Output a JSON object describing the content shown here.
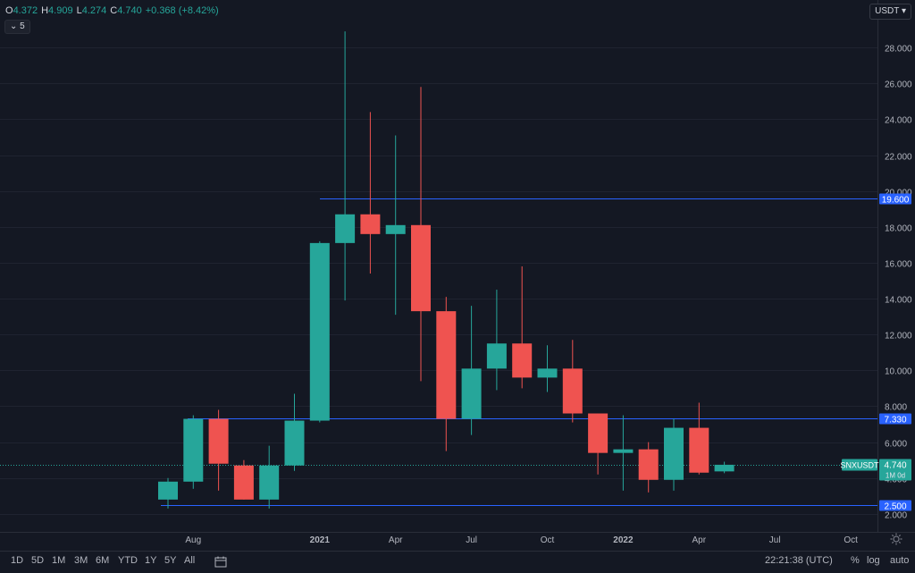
{
  "header": {
    "ohlc": [
      {
        "key": "O",
        "value": "4.372"
      },
      {
        "key": "H",
        "value": "4.909"
      },
      {
        "key": "L",
        "value": "4.274"
      },
      {
        "key": "C",
        "value": "4.740"
      }
    ],
    "change": "+0.368 (+8.42%)",
    "collapse_count": "5",
    "currency": "USDT"
  },
  "chart_data": {
    "type": "candlestick",
    "symbol_label": "SNXUSDT",
    "symbol_sub": "1M 0d",
    "last_price_label": "4.740",
    "last_price": 4.74,
    "y_ticks": [
      "28.000",
      "26.000",
      "24.000",
      "22.000",
      "20.000",
      "18.000",
      "16.000",
      "14.000",
      "12.000",
      "10.000",
      "8.000",
      "6.000",
      "4.000",
      "2.000"
    ],
    "ylim": [
      0.6,
      29.9
    ],
    "x_ticks": [
      {
        "label": "Aug",
        "index": 1,
        "bold": false
      },
      {
        "label": "2021",
        "index": 6,
        "bold": true
      },
      {
        "label": "Apr",
        "index": 9,
        "bold": false
      },
      {
        "label": "Jul",
        "index": 12,
        "bold": false
      },
      {
        "label": "Oct",
        "index": 15,
        "bold": false
      },
      {
        "label": "2022",
        "index": 18,
        "bold": true
      },
      {
        "label": "Apr",
        "index": 21,
        "bold": false
      },
      {
        "label": "Jul",
        "index": 24,
        "bold": false
      },
      {
        "label": "Oct",
        "index": 27,
        "bold": false
      }
    ],
    "candles": [
      {
        "o": 2.8,
        "h": 4.0,
        "l": 2.3,
        "c": 3.8
      },
      {
        "o": 3.8,
        "h": 7.5,
        "l": 3.4,
        "c": 7.3
      },
      {
        "o": 7.3,
        "h": 7.8,
        "l": 3.3,
        "c": 4.8
      },
      {
        "o": 4.7,
        "h": 5.0,
        "l": 2.8,
        "c": 2.8
      },
      {
        "o": 2.8,
        "h": 5.8,
        "l": 2.3,
        "c": 4.7
      },
      {
        "o": 4.7,
        "h": 8.7,
        "l": 4.4,
        "c": 7.2
      },
      {
        "o": 7.2,
        "h": 17.2,
        "l": 7.1,
        "c": 17.1
      },
      {
        "o": 17.1,
        "h": 28.9,
        "l": 13.9,
        "c": 18.7
      },
      {
        "o": 18.7,
        "h": 24.4,
        "l": 15.4,
        "c": 17.6
      },
      {
        "o": 17.6,
        "h": 23.1,
        "l": 13.1,
        "c": 18.1
      },
      {
        "o": 18.1,
        "h": 25.8,
        "l": 9.4,
        "c": 13.3
      },
      {
        "o": 13.3,
        "h": 14.1,
        "l": 5.5,
        "c": 7.3
      },
      {
        "o": 7.3,
        "h": 13.6,
        "l": 6.4,
        "c": 10.1
      },
      {
        "o": 10.1,
        "h": 14.5,
        "l": 8.9,
        "c": 11.5
      },
      {
        "o": 11.5,
        "h": 15.8,
        "l": 9.0,
        "c": 9.6
      },
      {
        "o": 9.6,
        "h": 11.4,
        "l": 8.8,
        "c": 10.1
      },
      {
        "o": 10.1,
        "h": 11.7,
        "l": 7.1,
        "c": 7.6
      },
      {
        "o": 7.6,
        "h": 7.6,
        "l": 4.2,
        "c": 5.4
      },
      {
        "o": 5.4,
        "h": 7.5,
        "l": 3.3,
        "c": 5.6
      },
      {
        "o": 5.6,
        "h": 6.0,
        "l": 3.2,
        "c": 3.9
      },
      {
        "o": 3.9,
        "h": 7.3,
        "l": 3.3,
        "c": 6.8
      },
      {
        "o": 6.8,
        "h": 8.2,
        "l": 4.2,
        "c": 4.3
      },
      {
        "o": 4.37,
        "h": 4.91,
        "l": 4.27,
        "c": 4.74
      }
    ],
    "levels": [
      {
        "value": 19.6,
        "label": "19.600"
      },
      {
        "value": 7.33,
        "label": "7.330"
      },
      {
        "value": 2.5,
        "label": "2.500"
      }
    ],
    "colors": {
      "up": "#26a69a",
      "down": "#ef5350",
      "level": "#2962ff",
      "background": "#141823",
      "grid": "#1f2330"
    }
  },
  "bottombar": {
    "ranges": [
      "1D",
      "5D",
      "1M",
      "3M",
      "6M",
      "YTD",
      "1Y",
      "5Y",
      "All"
    ],
    "clock": "22:21:38 (UTC)",
    "percent": "%",
    "log": "log",
    "auto": "auto"
  }
}
